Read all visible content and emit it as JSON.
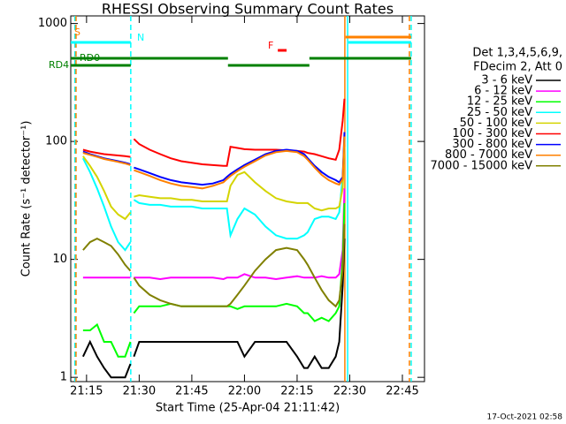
{
  "chart_data": {
    "type": "line",
    "title": "RHESSI Observing Summary Count Rates",
    "xlabel": "Start Time (25-Apr-04 21:11:42)",
    "ylabel": "Count Rate (s⁻¹ detector⁻¹)",
    "footer": "17-Oct-2021 02:58",
    "legend_header": [
      "Det 1,3,4,5,6,9,",
      "FDecim 2, Att 0"
    ],
    "log_y": true,
    "xlim": [
      10.5,
      111.3
    ],
    "ylim": [
      0.92,
      1160
    ],
    "yticks": [
      1,
      10,
      100,
      1000
    ],
    "xticks": [
      {
        "value": 15,
        "label": "21:15"
      },
      {
        "value": 30,
        "label": "21:30"
      },
      {
        "value": 45,
        "label": "21:45"
      },
      {
        "value": 60,
        "label": "22:00"
      },
      {
        "value": 75,
        "label": "22:15"
      },
      {
        "value": 90,
        "label": "22:30"
      },
      {
        "value": 105,
        "label": "22:45"
      }
    ],
    "x": [
      14,
      16,
      18,
      20,
      22,
      24,
      26,
      27.5,
      28,
      28.5,
      30,
      33,
      36,
      39,
      42,
      45,
      48,
      51,
      54,
      55,
      56,
      58,
      60,
      63,
      66,
      69,
      72,
      75,
      77,
      78,
      80,
      82,
      84,
      86,
      87,
      88,
      88.5
    ],
    "series": [
      {
        "name": "3 - 6 keV",
        "color": "#000000",
        "values": [
          1.5,
          2,
          1.5,
          1.2,
          1,
          1,
          1,
          1.3,
          null,
          1.5,
          2,
          2,
          2,
          2,
          2,
          2,
          2,
          2,
          2,
          2,
          2,
          2,
          1.5,
          2,
          2,
          2,
          2,
          1.5,
          1.2,
          1.2,
          1.5,
          1.2,
          1.2,
          1.5,
          2,
          6,
          15
        ]
      },
      {
        "name": "6 - 12 keV",
        "color": "#ff00ff",
        "values": [
          7,
          7,
          7,
          7,
          7,
          7,
          7,
          7,
          null,
          7,
          7,
          7,
          6.8,
          7,
          7,
          7,
          7,
          7,
          6.8,
          7,
          7,
          7,
          7.5,
          7,
          7,
          6.8,
          7,
          7.2,
          7,
          7,
          7,
          7.2,
          7,
          7,
          7.5,
          12,
          40
        ]
      },
      {
        "name": "12 - 25 keV",
        "color": "#00ff00",
        "values": [
          2.5,
          2.5,
          2.8,
          2,
          2,
          1.5,
          1.5,
          2,
          null,
          3.5,
          4,
          4,
          4,
          4.2,
          4,
          4,
          4,
          4,
          4,
          4,
          4,
          3.8,
          4,
          4,
          4,
          4,
          4.2,
          4,
          3.5,
          3.5,
          3,
          3.2,
          3,
          3.5,
          4,
          10,
          30
        ]
      },
      {
        "name": "25 - 50 keV",
        "color": "#00ffff",
        "values": [
          72,
          55,
          40,
          28,
          19,
          14,
          12,
          14,
          null,
          32,
          30,
          29,
          29,
          28,
          28,
          28,
          27,
          27,
          27,
          27,
          16,
          22,
          27,
          24,
          19,
          16,
          15,
          15,
          16,
          17,
          22,
          23,
          23,
          22,
          25,
          50,
          110
        ]
      },
      {
        "name": "50 - 100 keV",
        "color": "#d4d400",
        "values": [
          75,
          62,
          50,
          38,
          28,
          24,
          22,
          25,
          null,
          34,
          35,
          34,
          33,
          33,
          32,
          32,
          31,
          31,
          31,
          31,
          42,
          52,
          55,
          45,
          38,
          33,
          31,
          30,
          30,
          30,
          27,
          26,
          27,
          27,
          28,
          40,
          90
        ]
      },
      {
        "name": "100 - 300 keV",
        "color": "#ff0000",
        "values": [
          85,
          82,
          80,
          78,
          77,
          76,
          75,
          74,
          null,
          105,
          95,
          85,
          78,
          72,
          68,
          66,
          64,
          63,
          62,
          62,
          90,
          88,
          86,
          85,
          85,
          85,
          84,
          83,
          82,
          80,
          78,
          75,
          72,
          70,
          85,
          150,
          230
        ]
      },
      {
        "name": "300 - 800 keV",
        "color": "#0000ff",
        "values": [
          82,
          78,
          75,
          72,
          70,
          68,
          66,
          64,
          null,
          60,
          58,
          54,
          50,
          47,
          45,
          44,
          43,
          44,
          47,
          50,
          53,
          58,
          63,
          70,
          78,
          83,
          85,
          83,
          78,
          72,
          62,
          55,
          50,
          47,
          45,
          50,
          120
        ]
      },
      {
        "name": "800 - 7000 keV",
        "color": "#ff8000",
        "values": [
          80,
          77,
          74,
          71,
          69,
          67,
          65,
          63,
          null,
          57,
          55,
          51,
          47,
          44,
          42,
          41,
          40,
          42,
          45,
          48,
          51,
          56,
          61,
          68,
          76,
          81,
          83,
          81,
          75,
          70,
          60,
          52,
          47,
          44,
          43,
          48,
          110
        ]
      },
      {
        "name": "7000 - 15000 keV",
        "color": "#808000",
        "values": [
          12,
          14,
          15,
          14,
          13,
          11,
          9,
          8,
          null,
          7,
          6,
          5,
          4.5,
          4.2,
          4,
          4,
          4,
          4,
          4,
          4,
          4.2,
          5,
          6,
          8,
          10,
          12,
          12.5,
          12,
          10,
          9,
          7,
          5.5,
          4.5,
          4,
          4.5,
          8,
          20
        ]
      }
    ],
    "flags": [
      {
        "label": "S",
        "color": "#ff8000",
        "segments": [
          [
            88.8,
            107.5
          ]
        ]
      },
      {
        "label": "N",
        "color": "#00ffff",
        "segments": [
          [
            10.5,
            27.6
          ],
          [
            89.6,
            107.5
          ]
        ]
      },
      {
        "label": "F",
        "color": "#ff0000",
        "segments": [
          [
            69.5,
            72
          ]
        ]
      },
      {
        "label": "RD0",
        "color": "#008000",
        "segments": [
          [
            10.5,
            27.6
          ],
          [
            27.6,
            55.3
          ],
          [
            78.5,
            107.5
          ]
        ]
      },
      {
        "label": "RD4",
        "color": "#008000",
        "segments": [
          [
            10.5,
            27.6
          ],
          [
            55.3,
            78.5
          ]
        ]
      }
    ],
    "vlines": [
      {
        "x": 11.7,
        "color": "#00ffff",
        "dashed": true
      },
      {
        "x": 12.0,
        "color": "#ff8000",
        "dashed": true
      },
      {
        "x": 27.6,
        "color": "#00ffff",
        "dashed": true
      },
      {
        "x": 88.6,
        "color": "#ff8000",
        "dashed": false
      },
      {
        "x": 89.4,
        "color": "#00ffff",
        "dashed": false
      },
      {
        "x": 107.0,
        "color": "#ff8000",
        "dashed": true
      },
      {
        "x": 107.5,
        "color": "#00ffff",
        "dashed": true
      }
    ]
  }
}
